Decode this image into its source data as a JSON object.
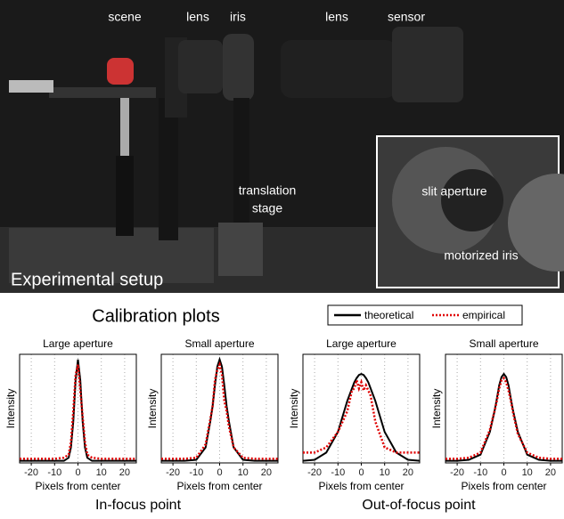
{
  "photo": {
    "labels": [
      "scene",
      "lens",
      "iris",
      "lens",
      "sensor"
    ],
    "stage_label": [
      "translation",
      "stage"
    ],
    "inset_labels": [
      "slit aperture",
      "motorized iris"
    ],
    "caption": "Experimental setup"
  },
  "plots_title": "Calibration plots",
  "groups": [
    "In-focus point",
    "Out-of-focus point"
  ],
  "chart_data": [
    {
      "type": "line",
      "title": "Large aperture",
      "x_label": "Pixels from center",
      "y_label": "Intensity",
      "xlim": [
        -25,
        25
      ],
      "xticks": [
        -20,
        -10,
        0,
        10,
        20
      ],
      "ylim": [
        0,
        1.05
      ],
      "grid": true,
      "series": [
        {
          "name": "theoretical",
          "color": "#000000",
          "x": [
            -25,
            -20,
            -15,
            -10,
            -6,
            -4,
            -3,
            -2,
            -1,
            0,
            1,
            2,
            3,
            4,
            6,
            10,
            15,
            20,
            25
          ],
          "values": [
            0.02,
            0.02,
            0.02,
            0.02,
            0.02,
            0.05,
            0.15,
            0.4,
            0.8,
            1,
            0.8,
            0.4,
            0.15,
            0.05,
            0.02,
            0.02,
            0.02,
            0.02,
            0.02
          ]
        },
        {
          "name": "empirical",
          "color": "#e00000",
          "x": [
            -25,
            -20,
            -15,
            -10,
            -6,
            -4,
            -3,
            -2,
            -1,
            0,
            1,
            2,
            3,
            4,
            6,
            10,
            15,
            20,
            25
          ],
          "values": [
            0.04,
            0.04,
            0.04,
            0.04,
            0.05,
            0.08,
            0.2,
            0.5,
            0.85,
            0.95,
            0.7,
            0.45,
            0.2,
            0.08,
            0.05,
            0.04,
            0.04,
            0.04,
            0.04
          ]
        }
      ]
    },
    {
      "type": "line",
      "title": "Small aperture",
      "x_label": "Pixels from center",
      "y_label": "Intensity",
      "xlim": [
        -25,
        25
      ],
      "xticks": [
        -20,
        -10,
        0,
        10,
        20
      ],
      "ylim": [
        0,
        1.05
      ],
      "grid": true,
      "series": [
        {
          "color": "#000000",
          "x": [
            -25,
            -20,
            -15,
            -10,
            -6,
            -4,
            -3,
            -2,
            -1,
            0,
            1,
            2,
            3,
            4,
            6,
            10,
            15,
            20,
            25
          ],
          "values": [
            0.02,
            0.02,
            0.02,
            0.03,
            0.15,
            0.4,
            0.55,
            0.75,
            0.93,
            1,
            0.93,
            0.75,
            0.55,
            0.4,
            0.15,
            0.03,
            0.02,
            0.02,
            0.02
          ]
        },
        {
          "color": "#e00000",
          "x": [
            -25,
            -20,
            -15,
            -10,
            -6,
            -4,
            -3,
            -2,
            -1,
            0,
            1,
            2,
            3,
            4,
            6,
            10,
            15,
            20,
            25
          ],
          "values": [
            0.04,
            0.04,
            0.04,
            0.05,
            0.18,
            0.42,
            0.55,
            0.8,
            0.9,
            0.95,
            0.85,
            0.6,
            0.5,
            0.35,
            0.15,
            0.05,
            0.04,
            0.04,
            0.04
          ]
        }
      ]
    },
    {
      "type": "line",
      "title": "Large aperture",
      "x_label": "Pixels from center",
      "y_label": "Intensity",
      "xlim": [
        -25,
        25
      ],
      "xticks": [
        -20,
        -10,
        0,
        10,
        20
      ],
      "ylim": [
        0,
        1.05
      ],
      "grid": true,
      "series": [
        {
          "color": "#000000",
          "x": [
            -25,
            -20,
            -15,
            -10,
            -6,
            -4,
            -3,
            -2,
            -1,
            0,
            1,
            2,
            3,
            4,
            6,
            10,
            15,
            20,
            25
          ],
          "values": [
            0.02,
            0.03,
            0.1,
            0.3,
            0.6,
            0.72,
            0.78,
            0.82,
            0.85,
            0.86,
            0.85,
            0.82,
            0.78,
            0.72,
            0.6,
            0.3,
            0.1,
            0.03,
            0.02
          ]
        },
        {
          "color": "#e00000",
          "x": [
            -25,
            -20,
            -15,
            -10,
            -6,
            -4,
            -3,
            -2,
            -1,
            0,
            1,
            2,
            3,
            4,
            6,
            10,
            15,
            20,
            25
          ],
          "values": [
            0.1,
            0.1,
            0.15,
            0.3,
            0.5,
            0.7,
            0.72,
            0.8,
            0.72,
            0.78,
            0.7,
            0.75,
            0.7,
            0.65,
            0.4,
            0.15,
            0.1,
            0.1,
            0.1
          ]
        }
      ]
    },
    {
      "type": "line",
      "title": "Small aperture",
      "x_label": "Pixels from center",
      "y_label": "Intensity",
      "xlim": [
        -25,
        25
      ],
      "xticks": [
        -20,
        -10,
        0,
        10,
        20
      ],
      "ylim": [
        0,
        1.05
      ],
      "grid": true,
      "series": [
        {
          "color": "#000000",
          "x": [
            -25,
            -20,
            -15,
            -10,
            -6,
            -4,
            -3,
            -2,
            -1,
            0,
            1,
            2,
            3,
            4,
            6,
            10,
            15,
            20,
            25
          ],
          "values": [
            0.02,
            0.02,
            0.03,
            0.08,
            0.3,
            0.5,
            0.62,
            0.75,
            0.83,
            0.86,
            0.83,
            0.75,
            0.62,
            0.5,
            0.3,
            0.08,
            0.03,
            0.02,
            0.02
          ]
        },
        {
          "color": "#e00000",
          "x": [
            -25,
            -20,
            -15,
            -10,
            -6,
            -4,
            -3,
            -2,
            -1,
            0,
            1,
            2,
            3,
            4,
            6,
            10,
            15,
            20,
            25
          ],
          "values": [
            0.04,
            0.04,
            0.05,
            0.1,
            0.32,
            0.5,
            0.6,
            0.72,
            0.8,
            0.82,
            0.78,
            0.7,
            0.6,
            0.48,
            0.28,
            0.1,
            0.05,
            0.04,
            0.04
          ]
        }
      ]
    }
  ]
}
